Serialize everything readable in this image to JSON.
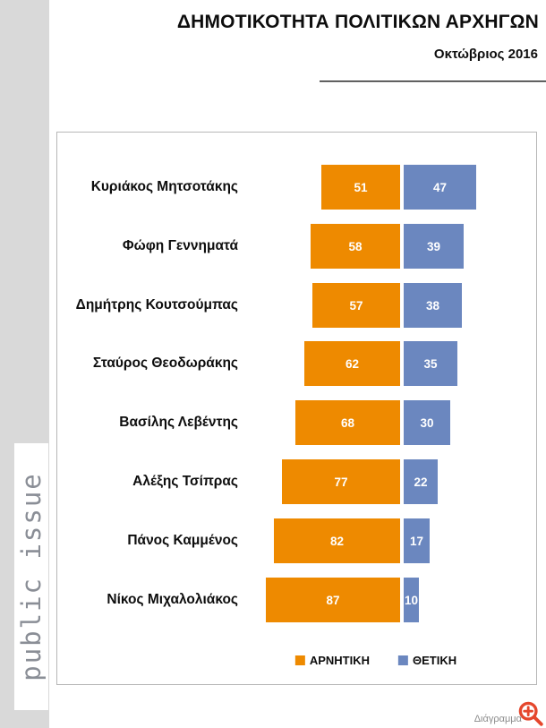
{
  "header": {
    "title": "ΔΗΜΟΤΙΚΟΤΗΤΑ ΠΟΛΙΤΙΚΩΝ ΑΡΧΗΓΩΝ",
    "subtitle": "Οκτώβριος 2016"
  },
  "watermark": {
    "text": "public issue"
  },
  "footer": {
    "caption": "Διάγραμμα",
    "icon": "magnifier-plus-icon",
    "icon_color": "#e5472d"
  },
  "colors": {
    "negative": "#ee8a00",
    "positive": "#6b87bf",
    "side_strip": "#d9d9d9",
    "value_label": "#ffffff"
  },
  "legend": [
    {
      "label": "ΑΡΝΗΤΙΚΗ",
      "color": "#ee8a00"
    },
    {
      "label": "ΘΕΤΙΚΗ",
      "color": "#6b87bf"
    }
  ],
  "chart_data": {
    "type": "bar",
    "orientation": "horizontal",
    "layout": "diverging stacked bars: negative series extends left from a central divider, positive series extends right; value labels inside bars; no axes or gridlines",
    "title": "ΔΗΜΟΤΙΚΟΤΗΤΑ ΠΟΛΙΤΙΚΩΝ ΑΡΧΗΓΩΝ",
    "subtitle": "Οκτώβριος 2016",
    "categories": [
      "Κυριάκος Μητσοτάκης",
      "Φώφη Γεννηματά",
      "Δημήτρης Κουτσούμπας",
      "Σταύρος Θεοδωράκης",
      "Βασίλης Λεβέντης",
      "Αλέξης Τσίπρας",
      "Πάνος Καμμένος",
      "Νίκος Μιχαλολιάκος"
    ],
    "series": [
      {
        "name": "ΑΡΝΗΤΙΚΗ",
        "color": "#ee8a00",
        "values": [
          51,
          58,
          57,
          62,
          68,
          77,
          82,
          87
        ]
      },
      {
        "name": "ΘΕΤΙΚΗ",
        "color": "#6b87bf",
        "values": [
          47,
          39,
          38,
          35,
          30,
          22,
          17,
          10
        ]
      }
    ],
    "value_labels": "inside, white, bold",
    "legend_position": "bottom-center",
    "xlim": [
      0,
      100
    ]
  }
}
